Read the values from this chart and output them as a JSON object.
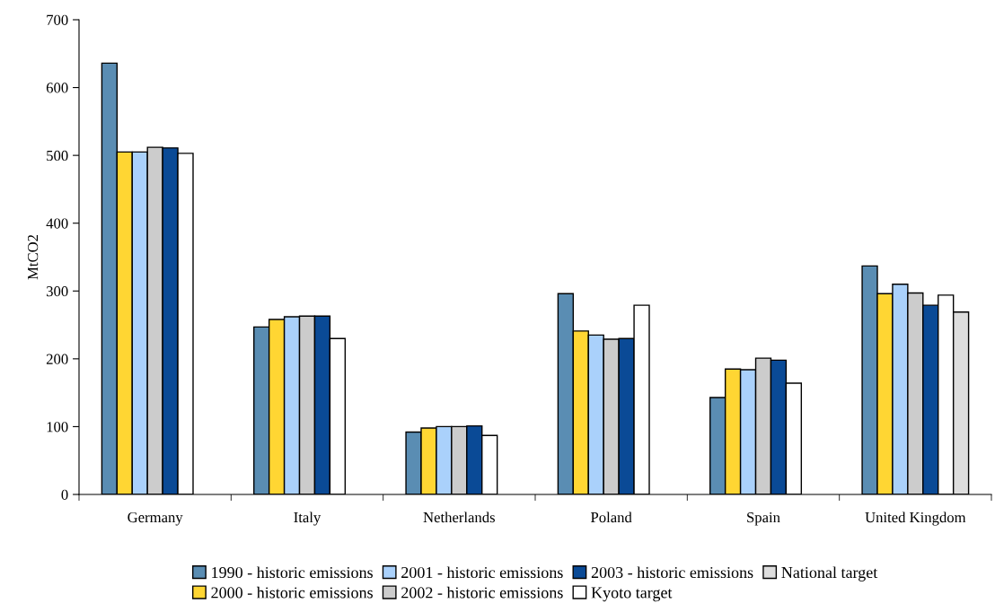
{
  "chart_data": {
    "type": "bar",
    "ylabel": "MtCO2",
    "categories": [
      "Germany",
      "Italy",
      "Netherlands",
      "Poland",
      "Spain",
      "United Kingdom"
    ],
    "series": [
      {
        "name": "1990 - historic emissions",
        "color": "#5a8db3",
        "values": [
          636,
          247,
          92,
          296,
          143,
          337
        ]
      },
      {
        "name": "2000 - historic emissions",
        "color": "#ffd633",
        "values": [
          505,
          258,
          98,
          241,
          185,
          296
        ]
      },
      {
        "name": "2001 - historic emissions",
        "color": "#aad1fb",
        "values": [
          505,
          262,
          100,
          235,
          184,
          310
        ]
      },
      {
        "name": "2002 - historic emissions",
        "color": "#cccccc",
        "values": [
          512,
          263,
          100,
          229,
          201,
          297
        ]
      },
      {
        "name": "2003 - historic emissions",
        "color": "#0a4a96",
        "values": [
          511,
          263,
          101,
          230,
          198,
          279
        ]
      },
      {
        "name": "Kyoto target",
        "color": "#ffffff",
        "values": [
          503,
          230,
          87,
          279,
          164,
          294
        ]
      },
      {
        "name": "National target",
        "color": "#dddddd",
        "values": [
          null,
          null,
          null,
          null,
          null,
          269
        ]
      }
    ],
    "ylim": [
      0,
      700
    ],
    "yticks": [
      0,
      100,
      200,
      300,
      400,
      500,
      600,
      700
    ],
    "grid": false,
    "legend": "bottom"
  }
}
